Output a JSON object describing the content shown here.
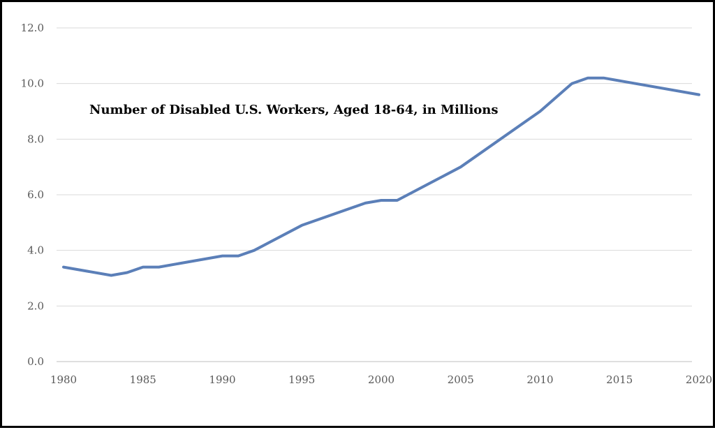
{
  "chart_data": {
    "type": "line",
    "title": "Number of Disabled U.S. Workers, Aged 18-64, in Millions",
    "xlabel": "",
    "ylabel": "",
    "xlim": [
      1980,
      2020
    ],
    "ylim": [
      0,
      12
    ],
    "y_ticks": [
      "0.0",
      "2.0",
      "4.0",
      "6.0",
      "8.0",
      "10.0",
      "12.0"
    ],
    "x_ticks": [
      "1980",
      "1985",
      "1990",
      "1995",
      "2000",
      "2005",
      "2010",
      "2015",
      "2020"
    ],
    "grid": true,
    "legend": "none",
    "colors": {
      "line": "#5b7fb8",
      "grid": "#d9d9d9",
      "axis": "#bfbfbf"
    },
    "series": [
      {
        "x": [
          1980,
          1983,
          1984,
          1985,
          1986,
          1990,
          1991,
          1992,
          1995,
          1999,
          2000,
          2001,
          2005,
          2010,
          2012,
          2013,
          2014,
          2020
        ],
        "values": [
          3.4,
          3.1,
          3.2,
          3.4,
          3.4,
          3.8,
          3.8,
          4.0,
          4.9,
          5.7,
          5.8,
          5.8,
          7.0,
          9.0,
          10.0,
          10.2,
          10.2,
          9.6
        ]
      }
    ]
  }
}
